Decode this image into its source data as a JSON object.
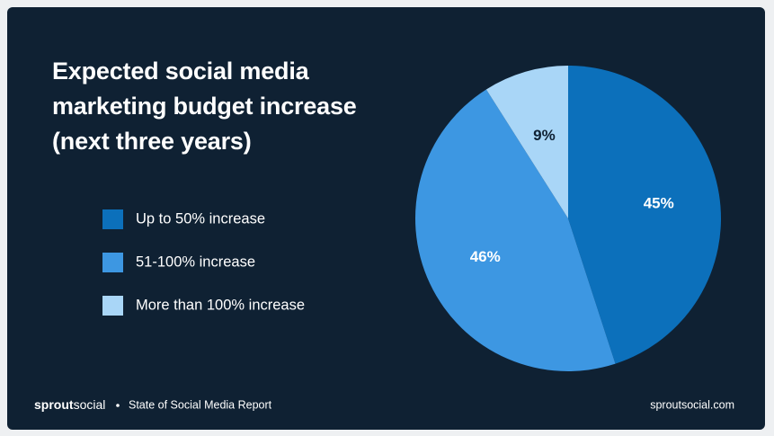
{
  "chart_data": {
    "type": "pie",
    "title": "Expected social media marketing budget increase (next three years)",
    "categories": [
      "Up to 50% increase",
      "51-100% increase",
      "More than 100% increase"
    ],
    "values": [
      45,
      46,
      9
    ],
    "value_labels": [
      "45%",
      "46%",
      "9%"
    ],
    "colors": [
      "#0c70bb",
      "#3d97e2",
      "#a9d6f7"
    ],
    "label_colors": [
      "#ffffff",
      "#ffffff",
      "#0f2133"
    ]
  },
  "footer": {
    "brand_bold": "sprout",
    "brand": "social",
    "report": "State of Social Media Report",
    "url": "sproutsocial.com"
  }
}
